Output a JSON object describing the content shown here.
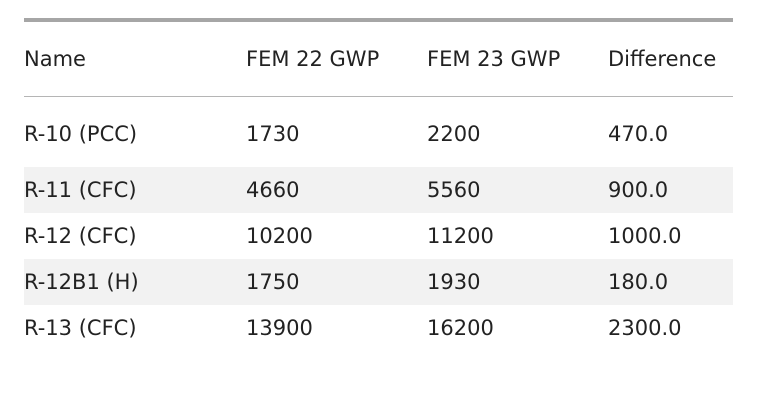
{
  "table": {
    "columns": [
      "Name",
      "FEM 22 GWP",
      "FEM 23 GWP",
      "Difference"
    ],
    "rows": [
      [
        "R-10 (PCC)",
        "1730",
        "2200",
        "470.0"
      ],
      [
        "R-11 (CFC)",
        "4660",
        "5560",
        "900.0"
      ],
      [
        "R-12 (CFC)",
        "10200",
        "11200",
        "1000.0"
      ],
      [
        "R-12B1 (H)",
        "1750",
        "1930",
        "180.0"
      ],
      [
        "R-13 (CFC)",
        "13900",
        "16200",
        "2300.0"
      ]
    ]
  },
  "colors": {
    "top_rule": "#a6a6a6",
    "header_rule": "#b5b5b5",
    "stripe": "#f2f2f2",
    "text": "#222222"
  }
}
